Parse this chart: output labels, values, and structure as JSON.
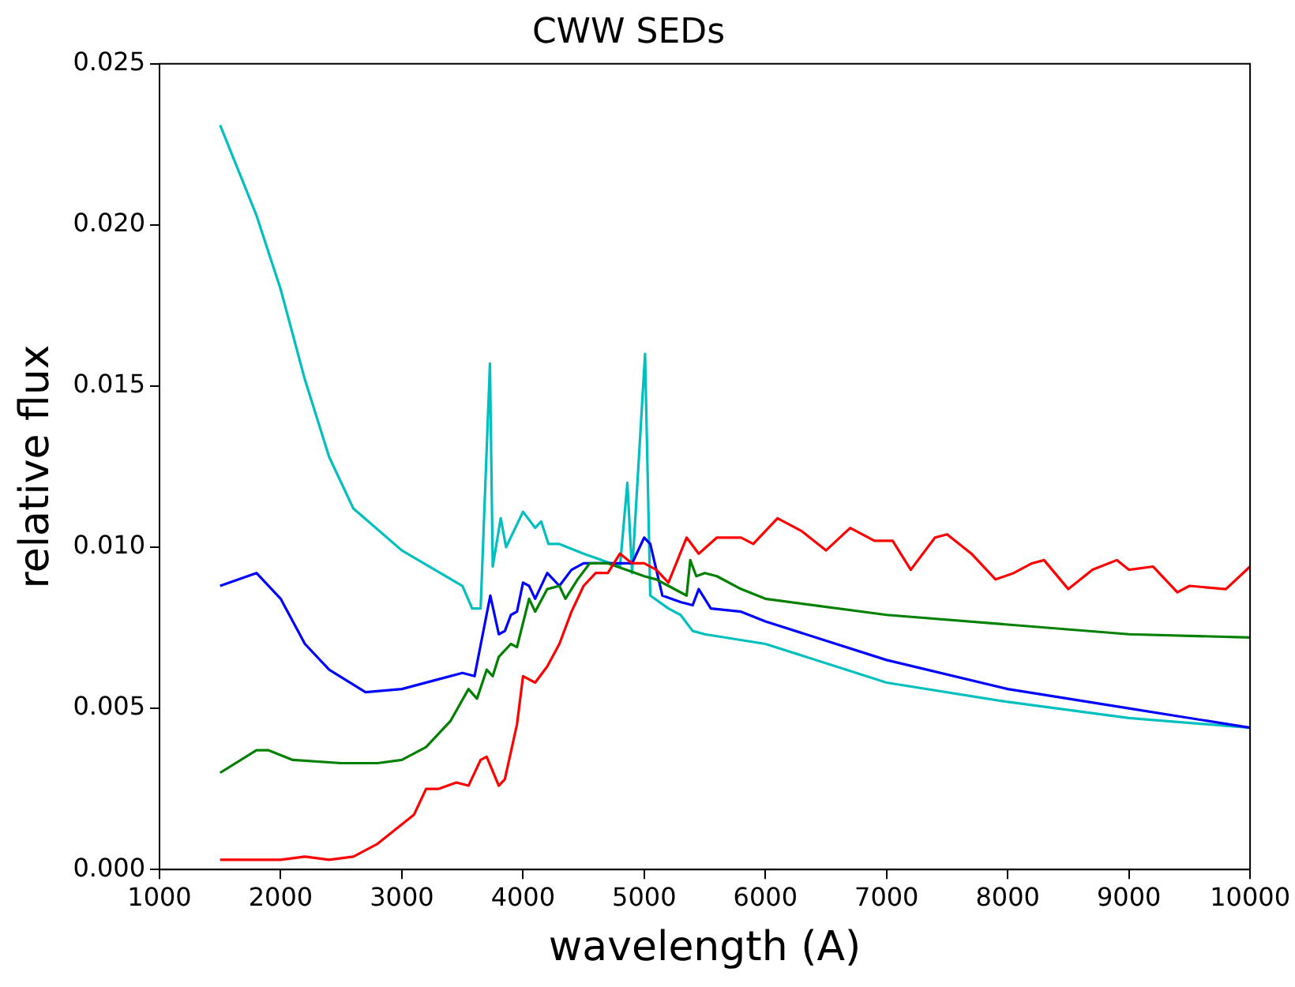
{
  "chart_data": {
    "type": "line",
    "title": "CWW SEDs",
    "xlabel": "wavelength (A)",
    "ylabel": "relative flux",
    "xlim": [
      1000,
      10000
    ],
    "xticks": [
      1000,
      2000,
      3000,
      4000,
      5000,
      6000,
      7000,
      8000,
      9000,
      10000
    ],
    "ylim": [
      0,
      0.025
    ],
    "yticks": [
      {
        "value": 0,
        "label": "0.000"
      },
      {
        "value": 0.005,
        "label": "0.005"
      },
      {
        "value": 0.01,
        "label": "0.010"
      },
      {
        "value": 0.015,
        "label": "0.015"
      },
      {
        "value": 0.02,
        "label": "0.020"
      },
      {
        "value": 0.025,
        "label": "0.025"
      }
    ],
    "grid": false,
    "legend": false,
    "marker": "none",
    "line_style": "solid",
    "series": [
      {
        "color": "#ff0000",
        "x": [
          1500,
          2000,
          2200,
          2400,
          2600,
          2800,
          3000,
          3100,
          3200,
          3300,
          3450,
          3550,
          3650,
          3700,
          3800,
          3850,
          3950,
          4000,
          4100,
          4200,
          4300,
          4400,
          4500,
          4600,
          4700,
          4800,
          4900,
          5000,
          5100,
          5200,
          5350,
          5450,
          5600,
          5800,
          5900,
          6100,
          6300,
          6500,
          6700,
          6900,
          7050,
          7200,
          7400,
          7500,
          7700,
          7900,
          8050,
          8200,
          8300,
          8500,
          8700,
          8900,
          9000,
          9200,
          9400,
          9500,
          9800,
          10000
        ],
        "values": [
          0.0003,
          0.0003,
          0.0004,
          0.0003,
          0.0004,
          0.0008,
          0.0014,
          0.0017,
          0.0025,
          0.0025,
          0.0027,
          0.0026,
          0.0034,
          0.0035,
          0.0026,
          0.0028,
          0.0045,
          0.006,
          0.0058,
          0.0063,
          0.007,
          0.008,
          0.0088,
          0.0092,
          0.0092,
          0.0098,
          0.0095,
          0.0095,
          0.0093,
          0.0089,
          0.0103,
          0.0098,
          0.0103,
          0.0103,
          0.0101,
          0.0109,
          0.0105,
          0.0099,
          0.0106,
          0.0102,
          0.0102,
          0.0093,
          0.0103,
          0.0104,
          0.0098,
          0.009,
          0.0092,
          0.0095,
          0.0096,
          0.0087,
          0.0093,
          0.0096,
          0.0093,
          0.0094,
          0.0086,
          0.0088,
          0.0087,
          0.0094
        ]
      },
      {
        "color": "#008000",
        "x": [
          1500,
          1800,
          1900,
          2100,
          2500,
          2800,
          3000,
          3200,
          3400,
          3550,
          3620,
          3700,
          3750,
          3800,
          3900,
          3950,
          4050,
          4100,
          4200,
          4300,
          4350,
          4450,
          4550,
          4700,
          4850,
          5000,
          5100,
          5200,
          5350,
          5380,
          5430,
          5500,
          5600,
          5800,
          6000,
          7000,
          8000,
          9000,
          10000
        ],
        "values": [
          0.003,
          0.0037,
          0.0037,
          0.0034,
          0.0033,
          0.0033,
          0.0034,
          0.0038,
          0.0046,
          0.0056,
          0.0053,
          0.0062,
          0.006,
          0.0066,
          0.007,
          0.0069,
          0.0084,
          0.008,
          0.0087,
          0.0088,
          0.0084,
          0.009,
          0.0095,
          0.0095,
          0.0093,
          0.0091,
          0.009,
          0.0088,
          0.0085,
          0.0096,
          0.0091,
          0.0092,
          0.0091,
          0.0087,
          0.0084,
          0.0079,
          0.0076,
          0.0073,
          0.0072
        ]
      },
      {
        "color": "#0000ff",
        "x": [
          1500,
          1800,
          2000,
          2200,
          2400,
          2700,
          3000,
          3300,
          3500,
          3600,
          3730,
          3800,
          3850,
          3900,
          3950,
          4000,
          4050,
          4100,
          4200,
          4300,
          4400,
          4500,
          4700,
          4900,
          5000,
          5050,
          5150,
          5300,
          5400,
          5450,
          5550,
          5800,
          6000,
          7000,
          8000,
          9000,
          10000
        ],
        "values": [
          0.0088,
          0.0092,
          0.0084,
          0.007,
          0.0062,
          0.0055,
          0.0056,
          0.0059,
          0.0061,
          0.006,
          0.0085,
          0.0073,
          0.0074,
          0.0079,
          0.008,
          0.0089,
          0.0088,
          0.0084,
          0.0092,
          0.0088,
          0.0093,
          0.0095,
          0.0095,
          0.0095,
          0.0103,
          0.0101,
          0.0085,
          0.0083,
          0.0082,
          0.0087,
          0.0081,
          0.008,
          0.0077,
          0.0065,
          0.0056,
          0.005,
          0.0044
        ]
      },
      {
        "color": "#00bfbf",
        "x": [
          1500,
          1800,
          2000,
          2200,
          2400,
          2600,
          3000,
          3500,
          3580,
          3650,
          3727,
          3750,
          3816,
          3860,
          4000,
          4100,
          4150,
          4210,
          4300,
          4500,
          4800,
          4861,
          4900,
          5007,
          5050,
          5200,
          5300,
          5400,
          5500,
          6000,
          7000,
          8000,
          9000,
          10000
        ],
        "values": [
          0.0231,
          0.0203,
          0.018,
          0.0152,
          0.0128,
          0.0112,
          0.0099,
          0.0088,
          0.0081,
          0.0081,
          0.0157,
          0.0094,
          0.0109,
          0.01,
          0.0111,
          0.0106,
          0.0108,
          0.0101,
          0.0101,
          0.0098,
          0.0094,
          0.012,
          0.0092,
          0.016,
          0.0085,
          0.0081,
          0.0079,
          0.0074,
          0.0073,
          0.007,
          0.0058,
          0.0052,
          0.0047,
          0.0044
        ]
      }
    ]
  }
}
